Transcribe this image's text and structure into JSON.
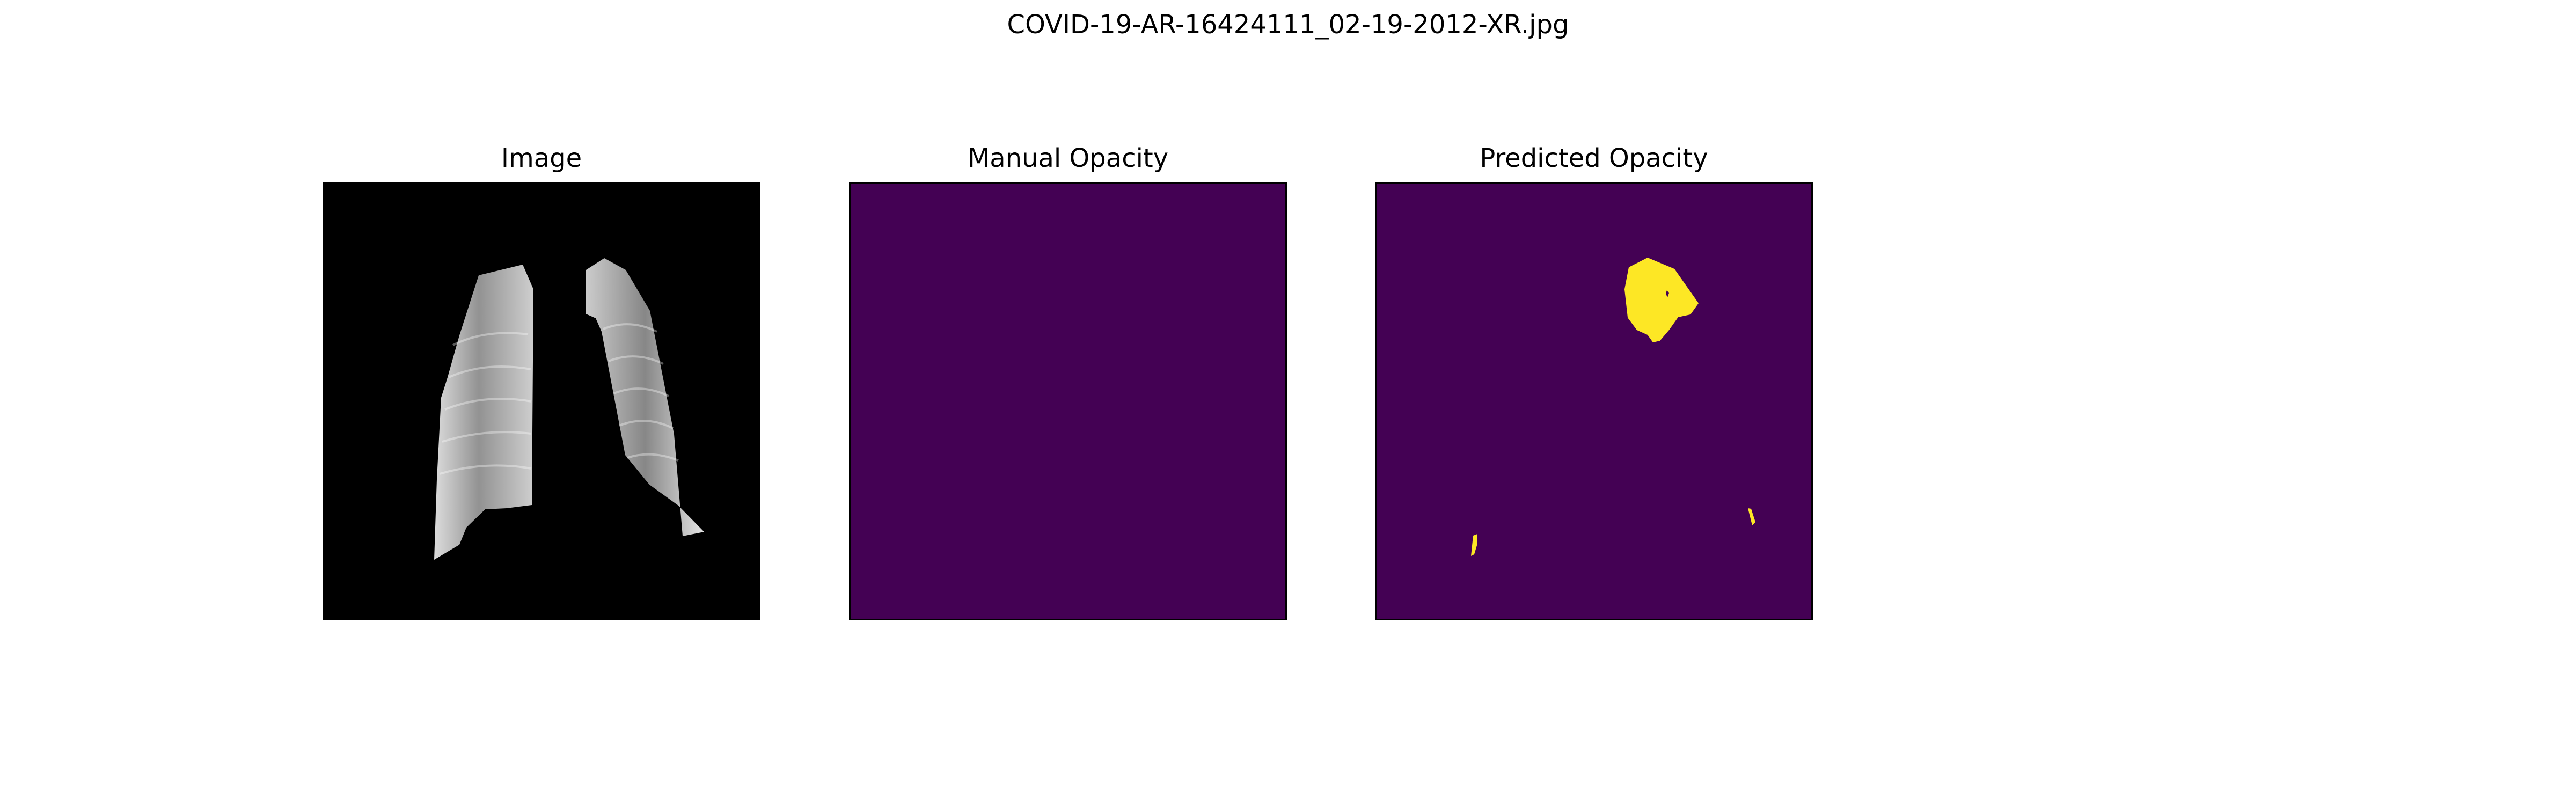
{
  "figure": {
    "title": "COVID-19-AR-16424111_02-19-2012-XR.jpg"
  },
  "panels": [
    {
      "title": "Image",
      "kind": "xray"
    },
    {
      "title": "Manual Opacity",
      "kind": "mask-empty"
    },
    {
      "title": "Predicted Opacity",
      "kind": "mask-predicted"
    }
  ],
  "colors": {
    "background": "#ffffff",
    "image_background": "#000000",
    "mask_background": "#440154",
    "mask_foreground": "#fde725"
  }
}
